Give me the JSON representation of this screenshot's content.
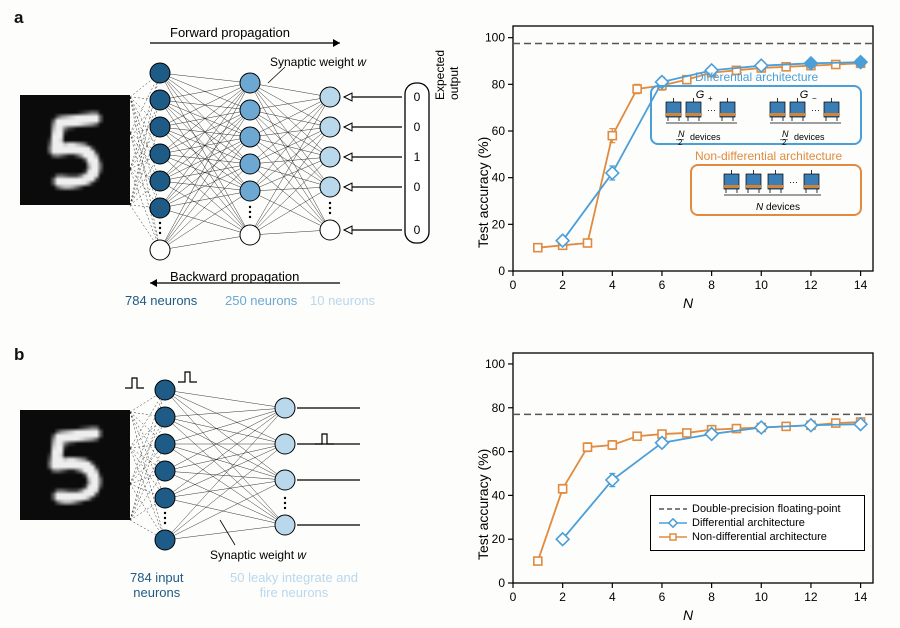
{
  "panels": {
    "a": "a",
    "b": "b"
  },
  "colors": {
    "layer1": "#1f5b87",
    "layer2": "#6ca8d2",
    "layer3": "#b9d8ec",
    "diff": "#4a9fd8",
    "nondiff": "#e08b3f",
    "baseline": "#555555",
    "axis": "#000000",
    "grid": "#e3e3e3",
    "bg": "#fdfdfc"
  },
  "panelA": {
    "diagram": {
      "forward_label": "Forward propagation",
      "backward_label": "Backward propagation",
      "weight_label": "Synaptic weight w",
      "expected_label": "Expected output",
      "expected_values": [
        "0",
        "0",
        "1",
        "0",
        "0"
      ],
      "layer1_label": "784 neurons",
      "layer2_label": "250 neurons",
      "layer3_label": "10 neurons",
      "layer1_color": "#1f5b87",
      "layer2_color": "#6ca8d2",
      "layer3_color": "#b9d8ec"
    },
    "chart": {
      "ylabel": "Test accuracy (%)",
      "xlabel": "N",
      "xlabel_style": "italic",
      "xlim": [
        0,
        14.5
      ],
      "xtick_start": 0,
      "xtick_step": 2,
      "xtick_end": 14,
      "ylim": [
        0,
        105
      ],
      "ytick_start": 0,
      "ytick_step": 20,
      "ytick_end": 100,
      "baseline_y": 97.5,
      "diff_label": "Differential architecture",
      "nondiff_label": "Non-differential architecture",
      "series_diff": {
        "color": "#4a9fd8",
        "marker": "diamond",
        "marker_fill": "#ffffff",
        "x": [
          2,
          4,
          6,
          8,
          10,
          12,
          14
        ],
        "y": [
          13,
          42,
          81,
          86,
          88,
          89,
          89.5
        ],
        "err": [
          2,
          3,
          2,
          1.5,
          1.5,
          1,
          1
        ],
        "solid_points_x": [
          12,
          14
        ],
        "solid_points_y": [
          89,
          89.5
        ]
      },
      "series_nondiff": {
        "color": "#e08b3f",
        "marker": "square",
        "marker_fill": "#ffffff",
        "x": [
          1,
          2,
          3,
          4,
          5,
          6,
          7,
          8,
          9,
          10,
          11,
          12,
          13,
          14
        ],
        "y": [
          10,
          11,
          12,
          58,
          78,
          79.5,
          82,
          85,
          86,
          87,
          87.5,
          88,
          88.5,
          89
        ],
        "err": [
          1.5,
          1.5,
          1.5,
          3,
          2,
          2,
          1.5,
          1.5,
          1.5,
          1.2,
          1.2,
          1.2,
          1.2,
          1.2
        ]
      },
      "inset_diff": {
        "gp": "G+",
        "gm": "G−",
        "dev": "devices",
        "frac": "N/2"
      },
      "inset_nondiff": {
        "dev": "N devices"
      },
      "tick_fontsize": 12,
      "label_fontsize": 14
    }
  },
  "panelB": {
    "diagram": {
      "weight_label": "Synaptic weight w",
      "layer1_label": "784 input\nneurons",
      "layer2_label": "50 leaky integrate and\nfire neurons",
      "layer1_color": "#1f5b87",
      "layer2_color": "#b9d8ec"
    },
    "chart": {
      "ylabel": "Test accuracy (%)",
      "xlabel": "N",
      "xlabel_style": "italic",
      "xlim": [
        0,
        14.5
      ],
      "xtick_start": 0,
      "xtick_step": 2,
      "xtick_end": 14,
      "ylim": [
        0,
        105
      ],
      "ytick_start": 0,
      "ytick_step": 20,
      "ytick_end": 100,
      "baseline_y": 77,
      "series_diff": {
        "color": "#4a9fd8",
        "marker": "diamond",
        "marker_fill": "#ffffff",
        "x": [
          2,
          4,
          6,
          8,
          10,
          12,
          14
        ],
        "y": [
          20,
          47,
          64,
          68,
          71,
          72,
          72.5
        ],
        "err": [
          2,
          3,
          2,
          1.5,
          1.5,
          1.2,
          1.2
        ]
      },
      "series_nondiff": {
        "color": "#e08b3f",
        "marker": "square",
        "marker_fill": "#ffffff",
        "x": [
          1,
          2,
          3,
          4,
          5,
          6,
          7,
          8,
          9,
          10,
          11,
          12,
          13,
          14
        ],
        "y": [
          10,
          43,
          62,
          63,
          67,
          68,
          68.5,
          70,
          70.5,
          71,
          71.5,
          72,
          73,
          73.5
        ],
        "err": [
          1.5,
          2,
          2,
          2,
          1.5,
          1.5,
          1.5,
          1.2,
          1.2,
          1.2,
          1.2,
          1.2,
          1.2,
          1.2
        ]
      },
      "legend": {
        "baseline": "Double-precision floating-point",
        "diff": "Differential architecture",
        "nondiff": "Non-differential architecture"
      },
      "tick_fontsize": 12,
      "label_fontsize": 14
    }
  }
}
